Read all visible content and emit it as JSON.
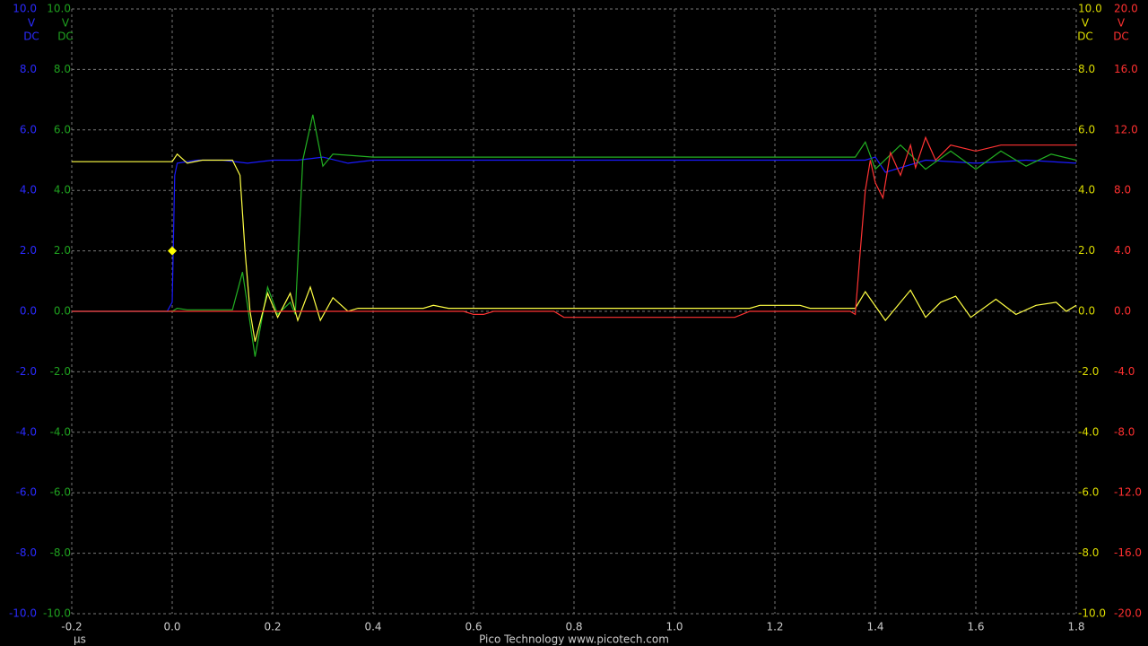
{
  "chart_data": {
    "type": "line",
    "footer": "Pico Technology   www.picotech.com",
    "xlabel": "µs",
    "xlim": [
      -0.2,
      1.8
    ],
    "xticks": [
      -0.2,
      {
        "value": 0,
        "label": "0.0"
      },
      0.2,
      0.4,
      0.6,
      0.8,
      {
        "value": 1,
        "label": "1.0"
      },
      1.2,
      1.4,
      1.6,
      1.8
    ],
    "grid": true,
    "yaxes": [
      {
        "side": "left",
        "color": "#2a2aff",
        "unit": [
          "V",
          "DC"
        ],
        "ylim": [
          -10,
          10
        ],
        "yticks": [
          {
            "value": 10,
            "label": "10.0"
          },
          {
            "value": 8,
            "label": "8.0"
          },
          {
            "value": 6,
            "label": "6.0"
          },
          {
            "value": 4,
            "label": "4.0"
          },
          {
            "value": 2,
            "label": "2.0"
          },
          {
            "value": 0,
            "label": "0.0"
          },
          {
            "value": -2,
            "label": "-2.0"
          },
          {
            "value": -4,
            "label": "-4.0"
          },
          {
            "value": -6,
            "label": "-6.0"
          },
          {
            "value": -8,
            "label": "-8.0"
          },
          {
            "value": -10,
            "label": "-10.0"
          }
        ]
      },
      {
        "side": "left",
        "color": "#1fa01f",
        "unit": [
          "V",
          "DC"
        ],
        "ylim": [
          -10,
          10
        ],
        "yticks": [
          {
            "value": 10,
            "label": "10.0"
          },
          {
            "value": 8,
            "label": "8.0"
          },
          {
            "value": 6,
            "label": "6.0"
          },
          {
            "value": 4,
            "label": "4.0"
          },
          {
            "value": 2,
            "label": "2.0"
          },
          {
            "value": 0,
            "label": "0.0"
          },
          {
            "value": -2,
            "label": "-2.0"
          },
          {
            "value": -4,
            "label": "-4.0"
          },
          {
            "value": -6,
            "label": "-6.0"
          },
          {
            "value": -8,
            "label": "-8.0"
          },
          {
            "value": -10,
            "label": "-10.0"
          }
        ]
      },
      {
        "side": "right",
        "color": "#dcdc00",
        "unit": [
          "V",
          "DC"
        ],
        "ylim": [
          -10,
          10
        ],
        "yticks": [
          {
            "value": 10,
            "label": "10.0"
          },
          {
            "value": 8,
            "label": "8.0"
          },
          {
            "value": 6,
            "label": "6.0"
          },
          {
            "value": 4,
            "label": "4.0"
          },
          {
            "value": 2,
            "label": "2.0"
          },
          {
            "value": 0,
            "label": "0.0"
          },
          {
            "value": -2,
            "label": "-2.0"
          },
          {
            "value": -4,
            "label": "-4.0"
          },
          {
            "value": -6,
            "label": "-6.0"
          },
          {
            "value": -8,
            "label": "-8.0"
          },
          {
            "value": -10,
            "label": "-10.0"
          }
        ]
      },
      {
        "side": "right",
        "color": "#ff3030",
        "unit": [
          "V",
          "DC"
        ],
        "ylim": [
          -20,
          20
        ],
        "yticks": [
          {
            "value": 20,
            "label": "20.0"
          },
          {
            "value": 16,
            "label": "16.0"
          },
          {
            "value": 12,
            "label": "12.0"
          },
          {
            "value": 8,
            "label": "8.0"
          },
          {
            "value": 4,
            "label": "4.0"
          },
          {
            "value": 0,
            "label": "0.0"
          },
          {
            "value": -4,
            "label": "-4.0"
          },
          {
            "value": -8,
            "label": "-8.0"
          },
          {
            "value": -12,
            "label": "-12.0"
          },
          {
            "value": -16,
            "label": "-16.0"
          },
          {
            "value": -20,
            "label": "-20.0"
          }
        ]
      }
    ],
    "series": [
      {
        "color": "#1a1aff",
        "axis": 0,
        "x": [
          -0.2,
          -0.01,
          0,
          0.005,
          0.01,
          0.05,
          0.1,
          0.15,
          0.2,
          0.25,
          0.3,
          0.35,
          0.4,
          0.6,
          0.8,
          1.0,
          1.2,
          1.38,
          1.4,
          1.42,
          1.5,
          1.6,
          1.7,
          1.8
        ],
        "values": [
          0,
          0,
          0.3,
          4.5,
          4.9,
          5.0,
          5.0,
          4.9,
          5.0,
          5.0,
          5.1,
          4.9,
          5.0,
          5.0,
          5.0,
          5.0,
          5.0,
          5.0,
          5.1,
          4.6,
          5.0,
          4.9,
          5.0,
          4.9
        ]
      },
      {
        "color": "#22b022",
        "axis": 1,
        "x": [
          -0.2,
          0,
          0.01,
          0.03,
          0.12,
          0.14,
          0.165,
          0.19,
          0.21,
          0.235,
          0.245,
          0.26,
          0.28,
          0.3,
          0.32,
          0.4,
          0.6,
          0.8,
          1.0,
          1.2,
          1.36,
          1.38,
          1.4,
          1.45,
          1.5,
          1.55,
          1.6,
          1.65,
          1.7,
          1.75,
          1.8
        ],
        "values": [
          0,
          0,
          0.1,
          0.05,
          0.05,
          1.3,
          -1.5,
          0.8,
          -0.1,
          0.3,
          -0.1,
          5.0,
          6.5,
          4.8,
          5.2,
          5.1,
          5.1,
          5.1,
          5.1,
          5.1,
          5.1,
          5.6,
          4.7,
          5.5,
          4.7,
          5.3,
          4.7,
          5.3,
          4.8,
          5.2,
          5.0
        ]
      },
      {
        "color": "#ffff44",
        "axis": 2,
        "x": [
          -0.2,
          0,
          0.01,
          0.03,
          0.06,
          0.12,
          0.135,
          0.145,
          0.155,
          0.165,
          0.19,
          0.21,
          0.235,
          0.25,
          0.275,
          0.295,
          0.32,
          0.35,
          0.37,
          0.5,
          0.52,
          0.55,
          1.15,
          1.17,
          1.25,
          1.27,
          1.36,
          1.38,
          1.42,
          1.47,
          1.5,
          1.53,
          1.56,
          1.59,
          1.64,
          1.68,
          1.72,
          1.76,
          1.78,
          1.8
        ],
        "values": [
          4.95,
          4.95,
          5.2,
          4.9,
          5.0,
          5.0,
          4.5,
          2.0,
          0,
          -1.0,
          0.6,
          -0.2,
          0.6,
          -0.3,
          0.8,
          -0.3,
          0.45,
          0.0,
          0.1,
          0.1,
          0.2,
          0.1,
          0.1,
          0.2,
          0.2,
          0.1,
          0.1,
          0.65,
          -0.3,
          0.7,
          -0.2,
          0.3,
          0.5,
          -0.2,
          0.4,
          -0.1,
          0.2,
          0.3,
          0.0,
          0.2
        ]
      },
      {
        "color": "#ff3333",
        "axis": 3,
        "x": [
          -0.2,
          0.58,
          0.6,
          0.62,
          0.64,
          0.76,
          0.78,
          1.12,
          1.15,
          1.35,
          1.36,
          1.37,
          1.38,
          1.39,
          1.4,
          1.415,
          1.43,
          1.45,
          1.47,
          1.48,
          1.5,
          1.52,
          1.55,
          1.6,
          1.65,
          1.7,
          1.8
        ],
        "values": [
          0,
          0,
          -0.2,
          -0.2,
          0,
          0,
          -0.4,
          -0.4,
          0,
          0,
          -0.2,
          4.0,
          8.0,
          10.0,
          8.5,
          7.5,
          10.5,
          9.0,
          11.0,
          9.5,
          11.5,
          10.0,
          11.0,
          10.6,
          11.0,
          11.0,
          11.0
        ]
      }
    ],
    "trigger": {
      "x": 0,
      "y": 2,
      "axis": 0,
      "color": "#ffff00"
    }
  }
}
